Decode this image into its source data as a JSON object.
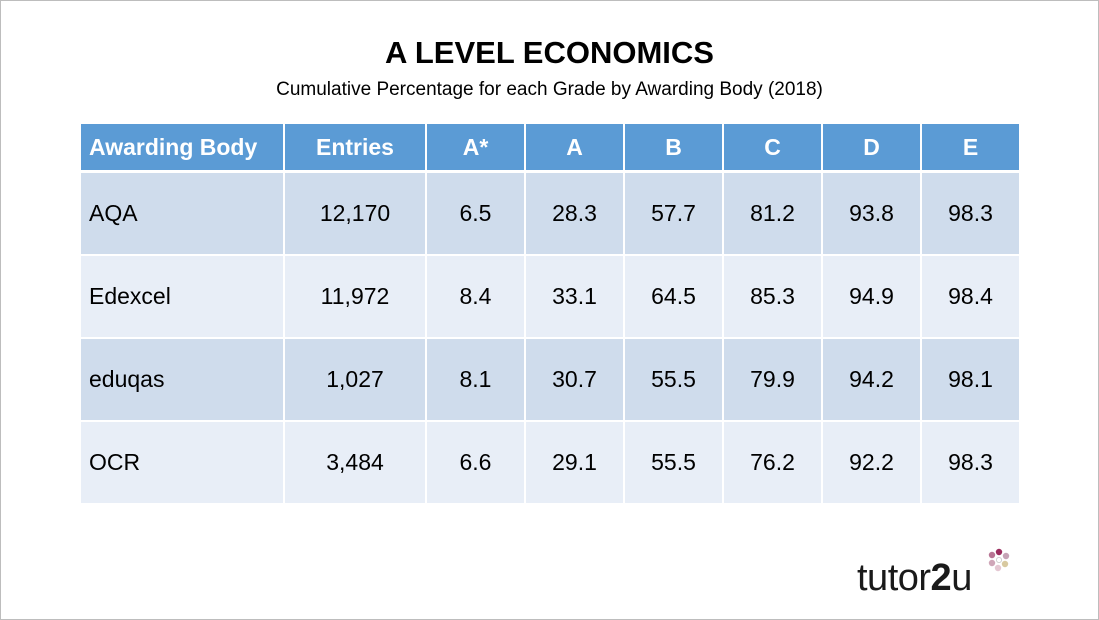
{
  "slide": {
    "title": "A LEVEL ECONOMICS",
    "subtitle": "Cumulative Percentage for each Grade by Awarding Body (2018)"
  },
  "table": {
    "headers": [
      "Awarding Body",
      "Entries",
      "A*",
      "A",
      "B",
      "C",
      "D",
      "E"
    ],
    "rows": [
      [
        "AQA",
        "12,170",
        "6.5",
        "28.3",
        "57.7",
        "81.2",
        "93.8",
        "98.3"
      ],
      [
        "Edexcel",
        "11,972",
        "8.4",
        "33.1",
        "64.5",
        "85.3",
        "94.9",
        "98.4"
      ],
      [
        "eduqas",
        "1,027",
        "8.1",
        "30.7",
        "55.5",
        "79.9",
        "94.2",
        "98.1"
      ],
      [
        "OCR",
        "3,484",
        "6.6",
        "29.1",
        "55.5",
        "76.2",
        "92.2",
        "98.3"
      ]
    ]
  },
  "logo": {
    "part1": "tutor",
    "part2": "2",
    "part3": "u",
    "icon": "flower-icon"
  },
  "colors": {
    "header_bg": "#5b9bd5",
    "row_dark": "#cfdcec",
    "row_light": "#e8eef7"
  }
}
